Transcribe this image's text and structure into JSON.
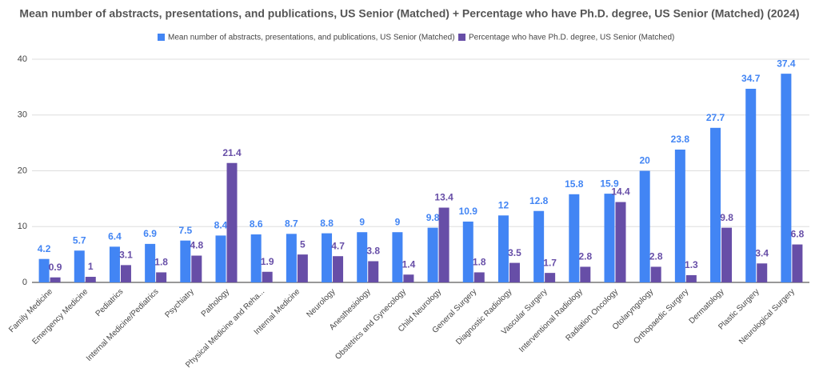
{
  "chart_data": {
    "type": "bar",
    "title": "Mean number of abstracts, presentations, and publications, US Senior (Matched) + Percentage who have Ph.D. degree, US Senior (Matched) (2024)",
    "categories": [
      "Family Medicine",
      "Emergency Medicine",
      "Pediatrics",
      "Internal Medicine/Pediatrics",
      "Psychiatry",
      "Pathology",
      "Physical Medicine and Reha...",
      "Internal Medicine",
      "Neurology",
      "Anesthesiology",
      "Obstetrics and Gynecology",
      "Child Neurology",
      "General Surgery",
      "Diagnostic Radiology",
      "Vascular Surgery",
      "Interventional Radiology",
      "Radiation Oncology",
      "Otolaryngology",
      "Orthopaedic Surgery",
      "Dermatology",
      "Plastic Surgery",
      "Neurological Surgery"
    ],
    "series": [
      {
        "name": "Mean number of abstracts, presentations, and publications, US Senior (Matched)",
        "color": "#4285f4",
        "values": [
          4.2,
          5.7,
          6.4,
          6.9,
          7.5,
          8.4,
          8.6,
          8.7,
          8.8,
          9,
          9,
          9.8,
          10.9,
          12,
          12.8,
          15.8,
          15.9,
          20,
          23.8,
          27.7,
          34.7,
          37.4
        ]
      },
      {
        "name": "Percentage who have Ph.D. degree, US Senior (Matched)",
        "color": "#674ea7",
        "values": [
          0.9,
          1,
          3.1,
          1.8,
          4.8,
          21.4,
          1.9,
          5,
          4.7,
          3.8,
          1.4,
          13.4,
          1.8,
          3.5,
          1.7,
          2.8,
          14.4,
          2.8,
          1.3,
          9.8,
          3.4,
          6.8
        ]
      }
    ],
    "ylim": [
      0,
      40
    ],
    "yticks": [
      0,
      10,
      20,
      30,
      40
    ],
    "grid": true,
    "legend": "top"
  }
}
